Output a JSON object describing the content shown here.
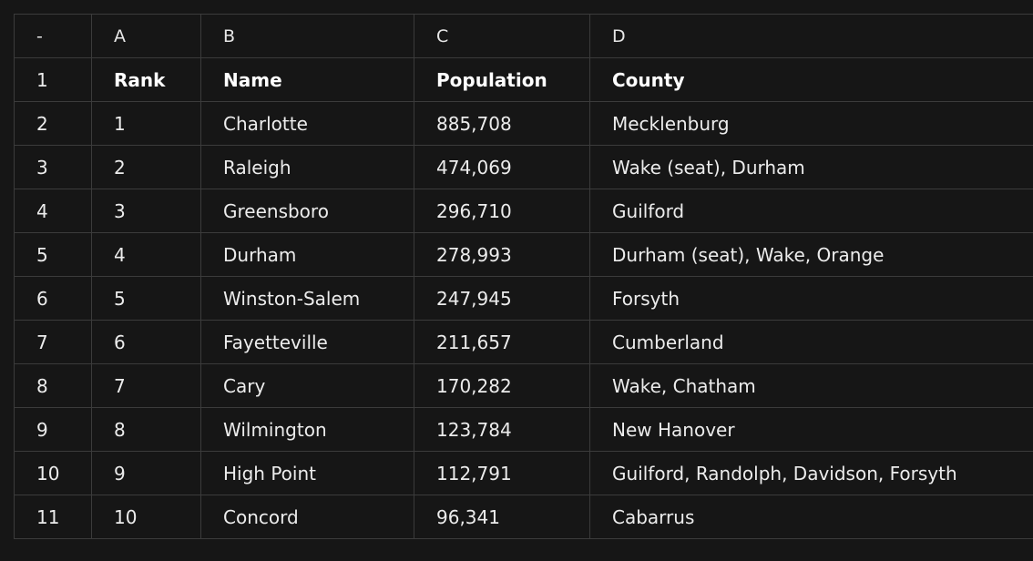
{
  "column_headers": {
    "corner": "-",
    "A": "A",
    "B": "B",
    "C": "C",
    "D": "D"
  },
  "rows": [
    {
      "num": "1",
      "a": "Rank",
      "b": "Name",
      "c": "Population",
      "d": "County"
    },
    {
      "num": "2",
      "a": "1",
      "b": "Charlotte",
      "c": "885,708",
      "d": "Mecklenburg"
    },
    {
      "num": "3",
      "a": "2",
      "b": "Raleigh",
      "c": "474,069",
      "d": "Wake (seat), Durham"
    },
    {
      "num": "4",
      "a": "3",
      "b": "Greensboro",
      "c": "296,710",
      "d": "Guilford"
    },
    {
      "num": "5",
      "a": "4",
      "b": "Durham",
      "c": "278,993",
      "d": "Durham (seat), Wake, Orange"
    },
    {
      "num": "6",
      "a": "5",
      "b": "Winston-Salem",
      "c": "247,945",
      "d": "Forsyth"
    },
    {
      "num": "7",
      "a": "6",
      "b": "Fayetteville",
      "c": "211,657",
      "d": "Cumberland"
    },
    {
      "num": "8",
      "a": "7",
      "b": "Cary",
      "c": "170,282",
      "d": "Wake, Chatham"
    },
    {
      "num": "9",
      "a": "8",
      "b": "Wilmington",
      "c": "123,784",
      "d": "New Hanover"
    },
    {
      "num": "10",
      "a": "9",
      "b": "High Point",
      "c": "112,791",
      "d": "Guilford, Randolph, Davidson, Forsyth"
    },
    {
      "num": "11",
      "a": "10",
      "b": "Concord",
      "c": "96,341",
      "d": "Cabarrus"
    }
  ],
  "colors": {
    "background": "#161616",
    "grid_line": "#3b3b3b",
    "text": "#ececec"
  }
}
